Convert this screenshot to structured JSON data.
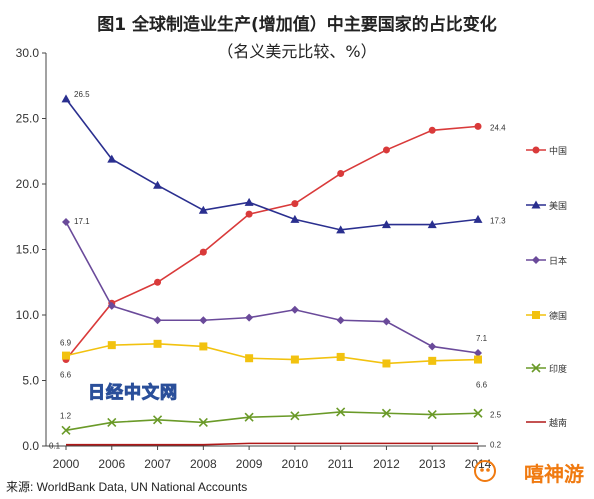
{
  "title": "图1  全球制造业生产(增加值）中主要国家的占比变化",
  "subtitle": "（名义美元比较、%）",
  "source": "来源: WorldBank Data, UN National Accounts",
  "watermark": "日经中文网",
  "brand_watermark": "嘻神游",
  "chart_data": {
    "type": "line",
    "title": "图1  全球制造业生产(增加值）中主要国家的占比变化",
    "subtitle": "（名义美元比较、%）",
    "x": [
      "2000",
      "2006",
      "2007",
      "2008",
      "2009",
      "2010",
      "2011",
      "2012",
      "2013",
      "2014"
    ],
    "yticks": [
      "0.0",
      "5.0",
      "10.0",
      "15.0",
      "20.0",
      "25.0",
      "30.0"
    ],
    "ylim": [
      0,
      30
    ],
    "grid": false,
    "legend_position": "right",
    "series": [
      {
        "name": "中国",
        "color": "#d93a3a",
        "marker": "circle",
        "values": [
          6.6,
          10.9,
          12.5,
          14.8,
          17.7,
          18.5,
          20.8,
          22.6,
          24.1,
          24.4
        ],
        "start_label": "6.6",
        "end_label": "24.4"
      },
      {
        "name": "美国",
        "color": "#2a2f8f",
        "marker": "triangle",
        "values": [
          26.5,
          21.9,
          19.9,
          18.0,
          18.6,
          17.3,
          16.5,
          16.9,
          16.9,
          17.3
        ],
        "start_label": "26.5",
        "end_label": "17.3"
      },
      {
        "name": "日本",
        "color": "#6a4a9a",
        "marker": "diamond",
        "values": [
          17.1,
          10.7,
          9.6,
          9.6,
          9.8,
          10.4,
          9.6,
          9.5,
          7.6,
          7.1
        ],
        "start_label": "17.1",
        "end_label": "7.1"
      },
      {
        "name": "德国",
        "color": "#f2c20f",
        "marker": "square",
        "values": [
          6.9,
          7.7,
          7.8,
          7.6,
          6.7,
          6.6,
          6.8,
          6.3,
          6.5,
          6.6
        ],
        "start_label": "6.9",
        "end_label": "6.6"
      },
      {
        "name": "印度",
        "color": "#6a9a28",
        "marker": "x",
        "values": [
          1.2,
          1.8,
          2.0,
          1.8,
          2.2,
          2.3,
          2.6,
          2.5,
          2.4,
          2.5
        ],
        "start_label": "1.2",
        "end_label": "2.5"
      },
      {
        "name": "越南",
        "color": "#b01818",
        "marker": "none",
        "values": [
          0.1,
          0.1,
          0.1,
          0.1,
          0.2,
          0.2,
          0.2,
          0.2,
          0.2,
          0.2
        ],
        "start_label": "0.1",
        "end_label": "0.2"
      }
    ]
  }
}
